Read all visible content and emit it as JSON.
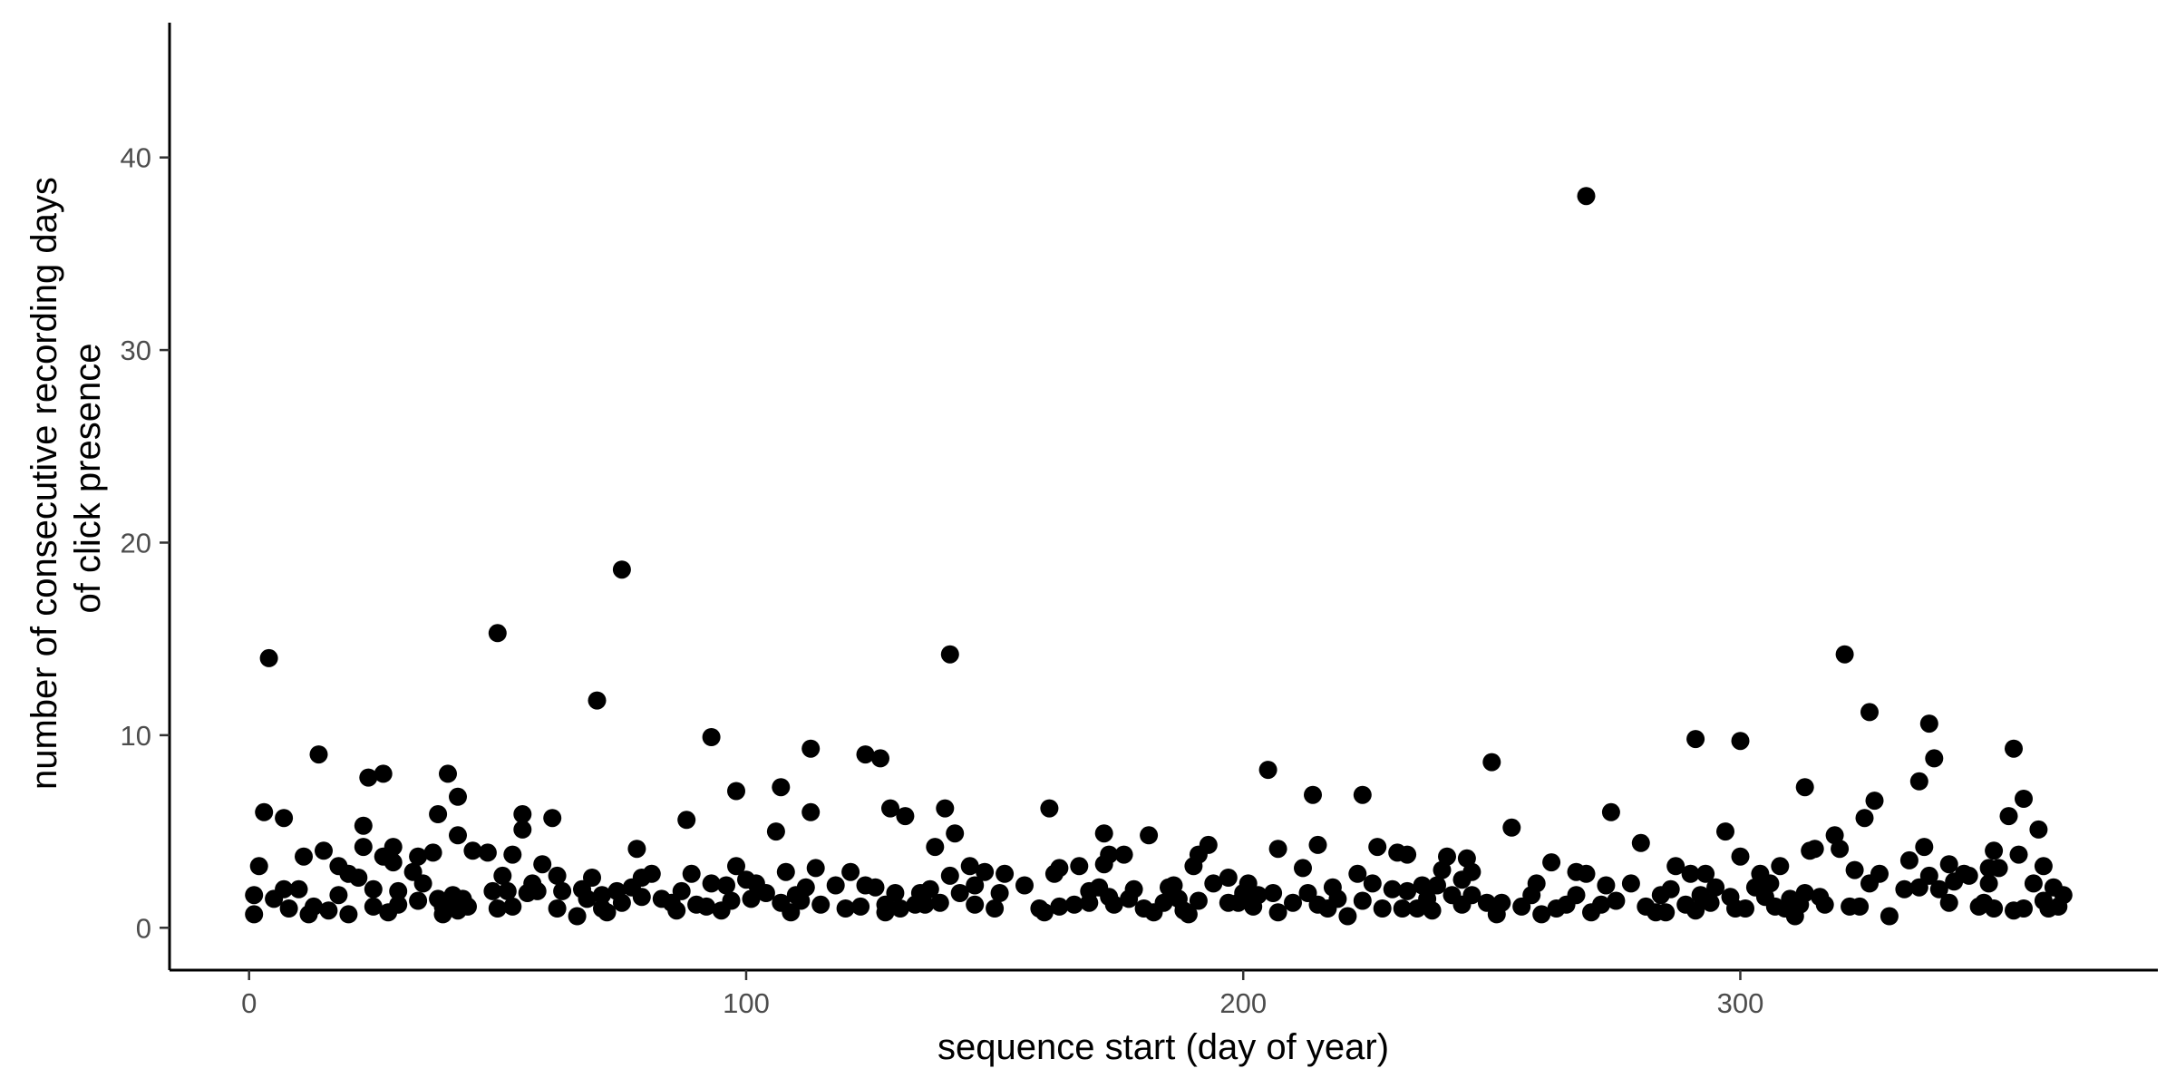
{
  "chart_data": {
    "type": "scatter",
    "title": "",
    "xlabel": "sequence start (day of year)",
    "ylabel_lines": [
      "number of consecutive recording days",
      "of click presence"
    ],
    "xlim": [
      -16,
      384
    ],
    "ylim": [
      -2.2,
      47
    ],
    "x_ticks": [
      0,
      100,
      200,
      300
    ],
    "y_ticks": [
      0,
      10,
      20,
      30,
      40
    ],
    "grid": false,
    "legend": "none",
    "point_color": "#000000",
    "points": [
      [
        1,
        0.7
      ],
      [
        1,
        1.7
      ],
      [
        2,
        3.2
      ],
      [
        3,
        6
      ],
      [
        4,
        14
      ],
      [
        5,
        1.5
      ],
      [
        7,
        5.7
      ],
      [
        7,
        2
      ],
      [
        8,
        1
      ],
      [
        10,
        2
      ],
      [
        11,
        3.7
      ],
      [
        12,
        0.7
      ],
      [
        13,
        1.1
      ],
      [
        14,
        9
      ],
      [
        15,
        4
      ],
      [
        16,
        0.9
      ],
      [
        18,
        1.7
      ],
      [
        18,
        3.2
      ],
      [
        20,
        2.8
      ],
      [
        20,
        0.7
      ],
      [
        22,
        2.6
      ],
      [
        23,
        5.3
      ],
      [
        23,
        4.2
      ],
      [
        24,
        7.8
      ],
      [
        25,
        2
      ],
      [
        25,
        1.1
      ],
      [
        27,
        3.7
      ],
      [
        27,
        8
      ],
      [
        28,
        0.8
      ],
      [
        29,
        4.2
      ],
      [
        29,
        3.4
      ],
      [
        30,
        1.9
      ],
      [
        30,
        1.2
      ],
      [
        33,
        2.9
      ],
      [
        34,
        3.7
      ],
      [
        34,
        1.4
      ],
      [
        35,
        2.3
      ],
      [
        37,
        3.9
      ],
      [
        38,
        5.9
      ],
      [
        38,
        1.5
      ],
      [
        39,
        1.1
      ],
      [
        39,
        0.7
      ],
      [
        40,
        8
      ],
      [
        41,
        1.7
      ],
      [
        42,
        0.9
      ],
      [
        42,
        4.8
      ],
      [
        42,
        6.8
      ],
      [
        43,
        1.5
      ],
      [
        44,
        1.1
      ],
      [
        45,
        4
      ],
      [
        48,
        3.9
      ],
      [
        49,
        1.9
      ],
      [
        50,
        15.3
      ],
      [
        50,
        1
      ],
      [
        51,
        2.7
      ],
      [
        52,
        1.9
      ],
      [
        53,
        3.8
      ],
      [
        53,
        1.1
      ],
      [
        55,
        5.1
      ],
      [
        55,
        5.9
      ],
      [
        56,
        1.8
      ],
      [
        57,
        2.3
      ],
      [
        58,
        1.9
      ],
      [
        59,
        3.3
      ],
      [
        61,
        5.7
      ],
      [
        62,
        2.7
      ],
      [
        62,
        1
      ],
      [
        63,
        1.9
      ],
      [
        66,
        0.6
      ],
      [
        67,
        2
      ],
      [
        68,
        1.5
      ],
      [
        69,
        2.6
      ],
      [
        70,
        11.8
      ],
      [
        71,
        1.7
      ],
      [
        71,
        1
      ],
      [
        72,
        0.8
      ],
      [
        74,
        1.9
      ],
      [
        75,
        18.6
      ],
      [
        75,
        1.3
      ],
      [
        77,
        2.1
      ],
      [
        78,
        4.1
      ],
      [
        79,
        2.6
      ],
      [
        79,
        1.6
      ],
      [
        81,
        2.8
      ],
      [
        83,
        1.5
      ],
      [
        85,
        1.3
      ],
      [
        86,
        0.9
      ],
      [
        87,
        1.9
      ],
      [
        88,
        5.6
      ],
      [
        89,
        2.8
      ],
      [
        90,
        1.2
      ],
      [
        92,
        1.1
      ],
      [
        93,
        2.3
      ],
      [
        93,
        9.9
      ],
      [
        95,
        0.9
      ],
      [
        96,
        2.2
      ],
      [
        97,
        1.4
      ],
      [
        98,
        7.1
      ],
      [
        98,
        3.2
      ],
      [
        100,
        2.5
      ],
      [
        101,
        1.5
      ],
      [
        102,
        2.3
      ],
      [
        104,
        1.8
      ],
      [
        106,
        5
      ],
      [
        107,
        7.3
      ],
      [
        107,
        1.3
      ],
      [
        108,
        2.9
      ],
      [
        109,
        0.8
      ],
      [
        110,
        1.7
      ],
      [
        111,
        1.4
      ],
      [
        112,
        2.1
      ],
      [
        113,
        9.3
      ],
      [
        113,
        6
      ],
      [
        114,
        3.1
      ],
      [
        115,
        1.2
      ],
      [
        118,
        2.2
      ],
      [
        120,
        1
      ],
      [
        121,
        2.9
      ],
      [
        123,
        1.1
      ],
      [
        124,
        9
      ],
      [
        124,
        2.2
      ],
      [
        126,
        2.1
      ],
      [
        127,
        8.8
      ],
      [
        128,
        0.8
      ],
      [
        128,
        1.2
      ],
      [
        129,
        6.2
      ],
      [
        130,
        1.8
      ],
      [
        131,
        1
      ],
      [
        132,
        5.8
      ],
      [
        134,
        1.2
      ],
      [
        135,
        1.8
      ],
      [
        136,
        1.2
      ],
      [
        137,
        2
      ],
      [
        138,
        4.2
      ],
      [
        139,
        1.3
      ],
      [
        140,
        6.2
      ],
      [
        141,
        2.7
      ],
      [
        141,
        14.2
      ],
      [
        142,
        4.9
      ],
      [
        143,
        1.8
      ],
      [
        145,
        3.2
      ],
      [
        146,
        2.2
      ],
      [
        146,
        1.2
      ],
      [
        148,
        2.9
      ],
      [
        150,
        1
      ],
      [
        151,
        1.8
      ],
      [
        152,
        2.8
      ],
      [
        156,
        2.2
      ],
      [
        159,
        1
      ],
      [
        160,
        0.8
      ],
      [
        161,
        6.2
      ],
      [
        162,
        2.8
      ],
      [
        163,
        3.1
      ],
      [
        163,
        1.1
      ],
      [
        166,
        1.2
      ],
      [
        167,
        3.2
      ],
      [
        169,
        1.9
      ],
      [
        169,
        1.3
      ],
      [
        171,
        2.1
      ],
      [
        172,
        3.3
      ],
      [
        172,
        4.9
      ],
      [
        173,
        1.6
      ],
      [
        173,
        3.8
      ],
      [
        174,
        1.2
      ],
      [
        176,
        3.8
      ],
      [
        177,
        1.5
      ],
      [
        178,
        2
      ],
      [
        180,
        1
      ],
      [
        181,
        4.8
      ],
      [
        182,
        0.8
      ],
      [
        184,
        1.3
      ],
      [
        185,
        2.1
      ],
      [
        186,
        2.2
      ],
      [
        187,
        1.5
      ],
      [
        188,
        0.9
      ],
      [
        189,
        0.7
      ],
      [
        190,
        3.2
      ],
      [
        191,
        1.4
      ],
      [
        191,
        3.8
      ],
      [
        193,
        4.3
      ],
      [
        194,
        2.3
      ],
      [
        197,
        1.3
      ],
      [
        197,
        2.6
      ],
      [
        199,
        1.3
      ],
      [
        200,
        1.8
      ],
      [
        201,
        2.3
      ],
      [
        202,
        1.1
      ],
      [
        203,
        1.7
      ],
      [
        205,
        8.2
      ],
      [
        206,
        1.8
      ],
      [
        207,
        4.1
      ],
      [
        207,
        0.8
      ],
      [
        210,
        1.3
      ],
      [
        212,
        3.1
      ],
      [
        213,
        1.8
      ],
      [
        214,
        6.9
      ],
      [
        215,
        4.3
      ],
      [
        215,
        1.2
      ],
      [
        217,
        1
      ],
      [
        218,
        2.1
      ],
      [
        219,
        1.5
      ],
      [
        221,
        0.6
      ],
      [
        223,
        2.8
      ],
      [
        224,
        6.9
      ],
      [
        224,
        1.4
      ],
      [
        226,
        2.3
      ],
      [
        227,
        4.2
      ],
      [
        228,
        1
      ],
      [
        230,
        2
      ],
      [
        231,
        3.9
      ],
      [
        232,
        1
      ],
      [
        233,
        1.9
      ],
      [
        233,
        3.8
      ],
      [
        235,
        1
      ],
      [
        236,
        2.2
      ],
      [
        237,
        1.5
      ],
      [
        238,
        0.9
      ],
      [
        239,
        2.2
      ],
      [
        240,
        3
      ],
      [
        241,
        3.7
      ],
      [
        242,
        1.7
      ],
      [
        244,
        1.2
      ],
      [
        244,
        2.5
      ],
      [
        245,
        3.6
      ],
      [
        246,
        1.7
      ],
      [
        246,
        2.9
      ],
      [
        249,
        1.3
      ],
      [
        250,
        8.6
      ],
      [
        251,
        0.7
      ],
      [
        252,
        1.3
      ],
      [
        254,
        5.2
      ],
      [
        256,
        1.1
      ],
      [
        258,
        1.7
      ],
      [
        259,
        2.3
      ],
      [
        260,
        0.7
      ],
      [
        262,
        3.4
      ],
      [
        263,
        1
      ],
      [
        265,
        1.2
      ],
      [
        267,
        2.9
      ],
      [
        267,
        1.7
      ],
      [
        269,
        38
      ],
      [
        269,
        2.8
      ],
      [
        270,
        0.8
      ],
      [
        272,
        1.2
      ],
      [
        273,
        2.2
      ],
      [
        274,
        6
      ],
      [
        275,
        1.4
      ],
      [
        278,
        2.3
      ],
      [
        280,
        4.4
      ],
      [
        281,
        1.1
      ],
      [
        283,
        0.8
      ],
      [
        284,
        1.7
      ],
      [
        285,
        0.8
      ],
      [
        286,
        2
      ],
      [
        287,
        3.2
      ],
      [
        289,
        1.2
      ],
      [
        290,
        2.8
      ],
      [
        291,
        9.8
      ],
      [
        291,
        0.9
      ],
      [
        292,
        1.7
      ],
      [
        293,
        2.8
      ],
      [
        294,
        1.3
      ],
      [
        295,
        2.1
      ],
      [
        297,
        5
      ],
      [
        298,
        1.6
      ],
      [
        299,
        1
      ],
      [
        300,
        9.7
      ],
      [
        300,
        3.7
      ],
      [
        301,
        1
      ],
      [
        303,
        2.1
      ],
      [
        304,
        2.8
      ],
      [
        305,
        1.6
      ],
      [
        306,
        2.3
      ],
      [
        307,
        1.1
      ],
      [
        308,
        3.2
      ],
      [
        309,
        1
      ],
      [
        310,
        1.5
      ],
      [
        311,
        0.6
      ],
      [
        312,
        1.2
      ],
      [
        313,
        7.3
      ],
      [
        313,
        1.8
      ],
      [
        314,
        4
      ],
      [
        315,
        4.1
      ],
      [
        316,
        1.6
      ],
      [
        317,
        1.2
      ],
      [
        319,
        4.8
      ],
      [
        320,
        4.1
      ],
      [
        321,
        14.2
      ],
      [
        322,
        1.1
      ],
      [
        323,
        3
      ],
      [
        324,
        1.1
      ],
      [
        325,
        5.7
      ],
      [
        326,
        2.3
      ],
      [
        326,
        11.2
      ],
      [
        327,
        6.6
      ],
      [
        328,
        2.8
      ],
      [
        330,
        0.6
      ],
      [
        333,
        2
      ],
      [
        334,
        3.5
      ],
      [
        336,
        2.1
      ],
      [
        336,
        7.6
      ],
      [
        337,
        4.2
      ],
      [
        338,
        2.7
      ],
      [
        338,
        10.6
      ],
      [
        339,
        8.8
      ],
      [
        340,
        2
      ],
      [
        342,
        1.3
      ],
      [
        342,
        3.3
      ],
      [
        343,
        2.4
      ],
      [
        345,
        2.8
      ],
      [
        346,
        2.7
      ],
      [
        348,
        1.1
      ],
      [
        349,
        1.3
      ],
      [
        350,
        3.1
      ],
      [
        350,
        2.3
      ],
      [
        351,
        4
      ],
      [
        351,
        1
      ],
      [
        352,
        3.1
      ],
      [
        354,
        5.8
      ],
      [
        355,
        9.3
      ],
      [
        355,
        0.9
      ],
      [
        356,
        3.8
      ],
      [
        357,
        6.7
      ],
      [
        357,
        1
      ],
      [
        359,
        2.3
      ],
      [
        360,
        5.1
      ],
      [
        361,
        3.2
      ],
      [
        361,
        1.4
      ],
      [
        362,
        1
      ],
      [
        363,
        2.1
      ],
      [
        364,
        1.1
      ],
      [
        365,
        1.7
      ]
    ]
  }
}
